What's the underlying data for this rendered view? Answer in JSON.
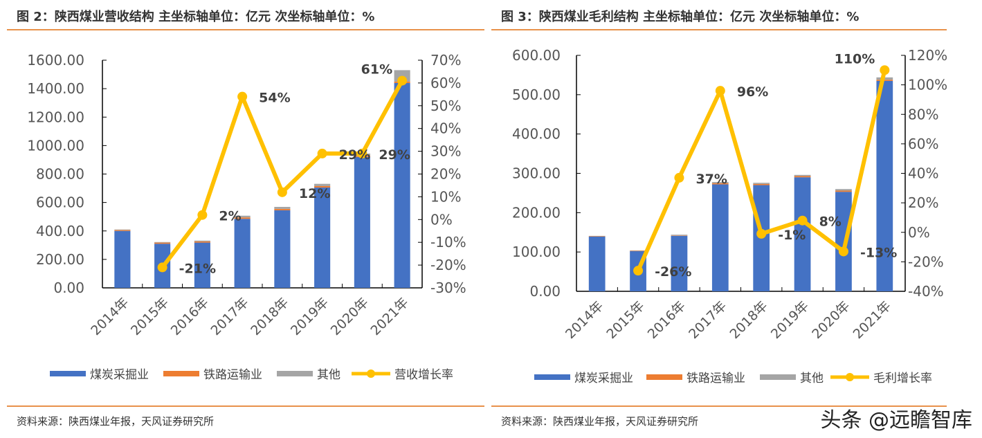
{
  "charts_meta": [
    {
      "title": "图 2：陕西煤业营收结构  主坐标轴单位：亿元  次坐标轴单位：%",
      "source": "资料来源：陕西煤业年报，天风证券研究所"
    },
    {
      "title": "图 3：陕西煤业毛利结构  主坐标轴单位：亿元  次坐标轴单位：%",
      "source": "资料来源：陕西煤业年报，天风证券研究所"
    }
  ],
  "watermark": "头条 @远瞻智库",
  "chart_data": [
    {
      "type": "bar",
      "stacked": true,
      "title": "图 2：陕西煤业营收结构",
      "categories": [
        "2014年",
        "2015年",
        "2016年",
        "2017年",
        "2018年",
        "2019年",
        "2020年",
        "2021年"
      ],
      "series": [
        {
          "name": "煤炭采掘业",
          "color": "#4472c4",
          "values": [
            400,
            310,
            318,
            485,
            545,
            705,
            920,
            1440
          ]
        },
        {
          "name": "铁路运输业",
          "color": "#ed7d31",
          "values": [
            6,
            8,
            8,
            10,
            10,
            10,
            8,
            10
          ]
        },
        {
          "name": "其他",
          "color": "#a5a5a5",
          "values": [
            4,
            4,
            6,
            12,
            14,
            16,
            16,
            80
          ]
        }
      ],
      "line": {
        "name": "营收增长率",
        "color": "#ffc000",
        "values": [
          null,
          -21,
          2,
          54,
          12,
          29,
          29,
          61
        ],
        "labels": [
          "",
          "-21%",
          "2%",
          "54%",
          "12%",
          "29%",
          "29%",
          "61%"
        ]
      },
      "ylim": [
        0,
        1600
      ],
      "yticks": [
        "0.00",
        "200.00",
        "400.00",
        "600.00",
        "800.00",
        "1000.00",
        "1200.00",
        "1400.00",
        "1600.00"
      ],
      "y2lim": [
        -30,
        70
      ],
      "y2ticks": [
        "-30%",
        "-20%",
        "-10%",
        "0%",
        "10%",
        "20%",
        "30%",
        "40%",
        "50%",
        "60%",
        "70%"
      ],
      "legend": "bottom"
    },
    {
      "type": "bar",
      "stacked": true,
      "title": "图 3：陕西煤业毛利结构",
      "categories": [
        "2014年",
        "2015年",
        "2016年",
        "2017年",
        "2018年",
        "2019年",
        "2020年",
        "2021年"
      ],
      "series": [
        {
          "name": "煤炭采掘业",
          "color": "#4472c4",
          "values": [
            139,
            102,
            141,
            272,
            270,
            290,
            253,
            535
          ]
        },
        {
          "name": "铁路运输业",
          "color": "#ed7d31",
          "values": [
            1,
            1,
            1,
            3,
            3,
            3,
            3,
            3
          ]
        },
        {
          "name": "其他",
          "color": "#a5a5a5",
          "values": [
            1,
            1,
            2,
            3,
            3,
            3,
            4,
            6
          ]
        }
      ],
      "line": {
        "name": "毛利增长率",
        "color": "#ffc000",
        "values": [
          null,
          -26,
          37,
          96,
          -1,
          8,
          -13,
          110
        ],
        "labels": [
          "",
          "-26%",
          "37%",
          "96%",
          "-1%",
          "8%",
          "-13%",
          "110%"
        ]
      },
      "ylim": [
        0,
        600
      ],
      "yticks": [
        "0.00",
        "100.00",
        "200.00",
        "300.00",
        "400.00",
        "500.00",
        "600.00"
      ],
      "y2lim": [
        -40,
        120
      ],
      "y2ticks": [
        "-40%",
        "-20%",
        "0%",
        "20%",
        "40%",
        "60%",
        "80%",
        "100%",
        "120%"
      ],
      "legend": "bottom"
    }
  ]
}
